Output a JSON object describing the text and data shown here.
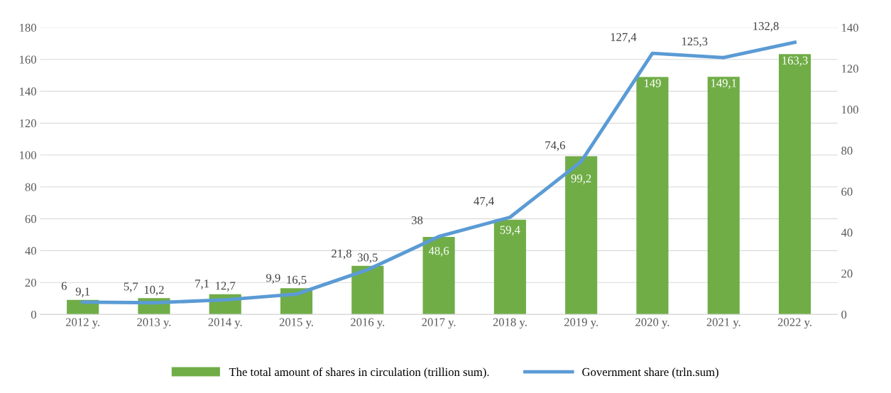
{
  "chart_data": {
    "type": "bar",
    "categories": [
      "2012 y.",
      "2013 y.",
      "2014 y.",
      "2015 y.",
      "2016 y.",
      "2017 y.",
      "2018 y.",
      "2019 y.",
      "2020 y.",
      "2021 y.",
      "2022 y."
    ],
    "series": [
      {
        "name": "The total amount of shares in circulation (trillion sum).",
        "color": "#70ad47",
        "values": [
          9.1,
          10.2,
          12.7,
          16.5,
          30.5,
          48.6,
          59.4,
          99.2,
          149,
          149.1,
          163.3
        ],
        "value_labels": [
          "9,1",
          "10,2",
          "12,7",
          "16,5",
          "30,5",
          "48,6",
          "59,4",
          "99,2",
          "149",
          "149,1",
          "163,3"
        ]
      },
      {
        "name": "Government share (trln.sum)",
        "type": "line",
        "axis": "y2",
        "color": "#5b9bd5",
        "values": [
          6,
          5.7,
          7.1,
          9.9,
          21.8,
          38,
          47.4,
          74.6,
          127.4,
          125.3,
          132.8
        ],
        "value_labels": [
          "6",
          "5,7",
          "7,1",
          "9,9",
          "21,8",
          "38",
          "47,4",
          "74,6",
          "127,4",
          "125,3",
          "132,8"
        ]
      }
    ],
    "ylim": [
      0,
      180
    ],
    "yticks": [
      0,
      20,
      40,
      60,
      80,
      100,
      120,
      140,
      160,
      180
    ],
    "y2lim": [
      0,
      140
    ],
    "y2ticks": [
      0,
      20,
      40,
      60,
      80,
      100,
      120,
      140
    ],
    "grid": "y",
    "legend": "bottom",
    "marker": "none",
    "line_style": "solid"
  }
}
